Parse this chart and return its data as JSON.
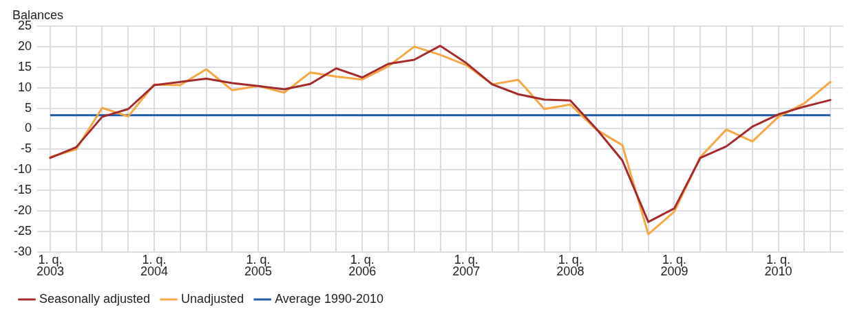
{
  "chart_data": {
    "type": "line",
    "ylabel": "Balances",
    "categories": [
      "1. q. 2003",
      null,
      null,
      null,
      "1. q. 2004",
      null,
      null,
      null,
      "1. q. 2005",
      null,
      null,
      null,
      "1. q. 2006",
      null,
      null,
      null,
      "1. q. 2007",
      null,
      null,
      null,
      "1. q. 2008",
      null,
      null,
      null,
      "1. q. 2009",
      null,
      null,
      null,
      "1. q. 2010",
      null,
      null
    ],
    "series": [
      {
        "name": "Seasonally adjusted",
        "color": "#a52a2a",
        "values": [
          -7.1,
          -4.5,
          2.9,
          4.8,
          10.6,
          11.4,
          12.2,
          11.1,
          10.4,
          9.6,
          10.9,
          14.7,
          12.5,
          15.8,
          16.8,
          20.2,
          16.0,
          10.8,
          8.4,
          7.1,
          6.9,
          0,
          -7.7,
          -22.7,
          -19.4,
          -7.1,
          -4.3,
          0.5,
          3.5,
          5.4,
          7.0
        ]
      },
      {
        "name": "Unadjusted",
        "color": "#f5a742",
        "values": [
          -6.9,
          -5,
          5.1,
          3,
          10.8,
          10.6,
          14.5,
          9.4,
          10.4,
          8.8,
          13.7,
          12.7,
          12.0,
          15.2,
          20.0,
          18.0,
          15.5,
          10.8,
          11.9,
          4.8,
          5.9,
          -0.2,
          -4.0,
          -25.7,
          -20.2,
          -6.9,
          -0.2,
          -3.1,
          2.9,
          6.2,
          11.4
        ]
      }
    ],
    "ref_lines": [
      {
        "axis": "y",
        "value": 3.3,
        "label": "Average 1990-2010",
        "color": "#1f5aa6"
      }
    ],
    "ylim": [
      -30,
      25
    ],
    "yticks": [
      -30,
      -25,
      -20,
      -15,
      -10,
      -5,
      0,
      5,
      10,
      15,
      20,
      25
    ],
    "grid": true,
    "legend": "bottom",
    "marker": "none",
    "line_style": "solid"
  }
}
